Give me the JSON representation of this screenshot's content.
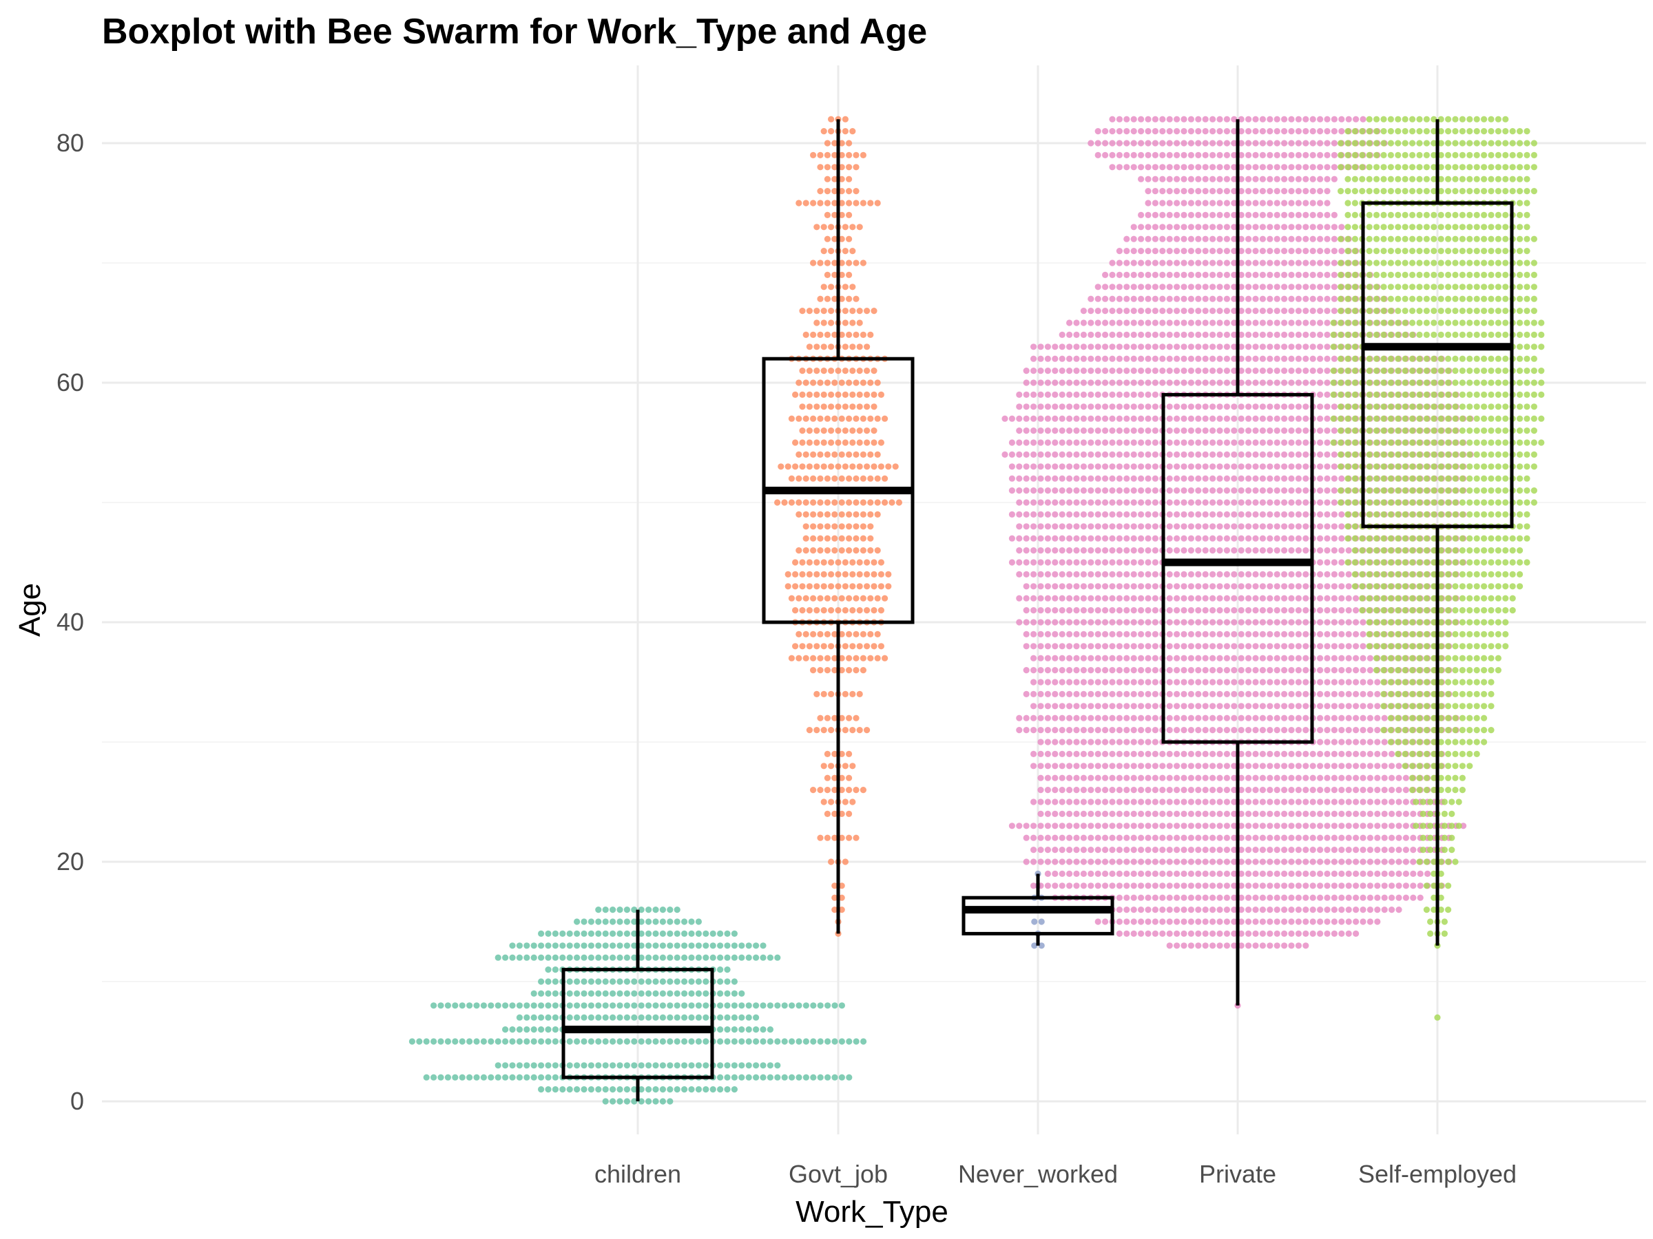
{
  "chart_data": {
    "type": "boxplot",
    "title": "Boxplot with Bee Swarm for Work_Type and Age",
    "xlabel": "Work_Type",
    "ylabel": "Age",
    "ylim": [
      -4,
      86
    ],
    "yticks": [
      0,
      20,
      40,
      60,
      80
    ],
    "grid": true,
    "legend": "none",
    "categories": [
      "children",
      "Govt_job",
      "Never_worked",
      "Private",
      "Self-employed"
    ],
    "colors": {
      "children": "#66c2a5",
      "Govt_job": "#fc8d62",
      "Never_worked": "#8da0cb",
      "Private": "#e78ac3",
      "Self-employed": "#a6d854"
    },
    "boxes": [
      {
        "category": "children",
        "min": 0,
        "q1": 2,
        "median": 6,
        "q3": 11,
        "max": 16
      },
      {
        "category": "Govt_job",
        "min": 14,
        "q1": 40,
        "median": 51,
        "q3": 62,
        "max": 82
      },
      {
        "category": "Never_worked",
        "min": 13,
        "q1": 14,
        "median": 16,
        "q3": 17,
        "max": 19
      },
      {
        "category": "Private",
        "min": 8,
        "q1": 30,
        "median": 45,
        "q3": 59,
        "max": 82
      },
      {
        "category": "Self-employed",
        "min": 13,
        "q1": 48,
        "median": 63,
        "q3": 75,
        "max": 82,
        "outliers": [
          7
        ]
      }
    ],
    "swarm": [
      {
        "category": "children",
        "age_counts": [
          [
            0,
            10
          ],
          [
            1,
            28
          ],
          [
            2,
            60
          ],
          [
            3,
            40
          ],
          [
            5,
            64
          ],
          [
            6,
            38
          ],
          [
            7,
            34
          ],
          [
            8,
            58
          ],
          [
            9,
            30
          ],
          [
            10,
            28
          ],
          [
            11,
            26
          ],
          [
            12,
            40
          ],
          [
            13,
            36
          ],
          [
            14,
            28
          ],
          [
            15,
            18
          ],
          [
            16,
            12
          ]
        ]
      },
      {
        "category": "Govt_job",
        "age_counts": [
          [
            14,
            1
          ],
          [
            15,
            1
          ],
          [
            16,
            2
          ],
          [
            17,
            2
          ],
          [
            18,
            2
          ],
          [
            20,
            3
          ],
          [
            22,
            6
          ],
          [
            24,
            4
          ],
          [
            25,
            5
          ],
          [
            26,
            8
          ],
          [
            27,
            4
          ],
          [
            28,
            5
          ],
          [
            29,
            4
          ],
          [
            31,
            9
          ],
          [
            32,
            6
          ],
          [
            34,
            7
          ],
          [
            36,
            8
          ],
          [
            37,
            14
          ],
          [
            38,
            13
          ],
          [
            39,
            12
          ],
          [
            40,
            13
          ],
          [
            41,
            13
          ],
          [
            42,
            14
          ],
          [
            43,
            15
          ],
          [
            44,
            15
          ],
          [
            45,
            13
          ],
          [
            46,
            12
          ],
          [
            47,
            10
          ],
          [
            48,
            10
          ],
          [
            49,
            12
          ],
          [
            50,
            18
          ],
          [
            51,
            16
          ],
          [
            52,
            14
          ],
          [
            53,
            17
          ],
          [
            54,
            12
          ],
          [
            55,
            13
          ],
          [
            56,
            11
          ],
          [
            57,
            14
          ],
          [
            58,
            11
          ],
          [
            59,
            13
          ],
          [
            60,
            12
          ],
          [
            61,
            11
          ],
          [
            62,
            14
          ],
          [
            63,
            9
          ],
          [
            64,
            10
          ],
          [
            65,
            7
          ],
          [
            66,
            11
          ],
          [
            67,
            6
          ],
          [
            68,
            5
          ],
          [
            69,
            4
          ],
          [
            70,
            8
          ],
          [
            71,
            5
          ],
          [
            72,
            4
          ],
          [
            73,
            7
          ],
          [
            74,
            4
          ],
          [
            75,
            12
          ],
          [
            76,
            6
          ],
          [
            77,
            4
          ],
          [
            78,
            6
          ],
          [
            79,
            8
          ],
          [
            80,
            4
          ],
          [
            81,
            5
          ],
          [
            82,
            3
          ]
        ]
      },
      {
        "category": "Never_worked",
        "age_counts": [
          [
            13,
            2
          ],
          [
            14,
            1
          ],
          [
            15,
            2
          ],
          [
            16,
            3
          ],
          [
            17,
            2
          ],
          [
            18,
            1
          ],
          [
            19,
            1
          ]
        ]
      },
      {
        "category": "Private",
        "age_counts": [
          [
            8,
            1
          ],
          [
            13,
            20
          ],
          [
            14,
            34
          ],
          [
            15,
            40
          ],
          [
            16,
            46
          ],
          [
            17,
            52
          ],
          [
            18,
            58
          ],
          [
            19,
            54
          ],
          [
            20,
            60
          ],
          [
            21,
            58
          ],
          [
            22,
            60
          ],
          [
            23,
            64
          ],
          [
            24,
            56
          ],
          [
            25,
            58
          ],
          [
            26,
            56
          ],
          [
            27,
            56
          ],
          [
            28,
            58
          ],
          [
            29,
            58
          ],
          [
            30,
            56
          ],
          [
            31,
            62
          ],
          [
            32,
            62
          ],
          [
            33,
            58
          ],
          [
            34,
            60
          ],
          [
            35,
            58
          ],
          [
            36,
            60
          ],
          [
            37,
            58
          ],
          [
            38,
            60
          ],
          [
            39,
            60
          ],
          [
            40,
            62
          ],
          [
            41,
            60
          ],
          [
            42,
            62
          ],
          [
            43,
            60
          ],
          [
            44,
            62
          ],
          [
            45,
            64
          ],
          [
            46,
            62
          ],
          [
            47,
            64
          ],
          [
            48,
            62
          ],
          [
            49,
            64
          ],
          [
            50,
            62
          ],
          [
            51,
            64
          ],
          [
            52,
            64
          ],
          [
            53,
            64
          ],
          [
            54,
            66
          ],
          [
            55,
            64
          ],
          [
            56,
            62
          ],
          [
            57,
            66
          ],
          [
            58,
            62
          ],
          [
            59,
            62
          ],
          [
            60,
            60
          ],
          [
            61,
            60
          ],
          [
            62,
            58
          ],
          [
            63,
            58
          ],
          [
            64,
            50
          ],
          [
            65,
            48
          ],
          [
            66,
            44
          ],
          [
            67,
            42
          ],
          [
            68,
            40
          ],
          [
            69,
            38
          ],
          [
            70,
            36
          ],
          [
            71,
            34
          ],
          [
            72,
            32
          ],
          [
            73,
            30
          ],
          [
            74,
            28
          ],
          [
            75,
            26
          ],
          [
            76,
            26
          ],
          [
            77,
            28
          ],
          [
            78,
            36
          ],
          [
            79,
            40
          ],
          [
            80,
            42
          ],
          [
            81,
            40
          ],
          [
            82,
            36
          ]
        ]
      },
      {
        "category": "Self-employed",
        "age_counts": [
          [
            7,
            1
          ],
          [
            13,
            1
          ],
          [
            14,
            3
          ],
          [
            15,
            3
          ],
          [
            16,
            4
          ],
          [
            17,
            2
          ],
          [
            18,
            4
          ],
          [
            19,
            2
          ],
          [
            20,
            6
          ],
          [
            21,
            5
          ],
          [
            22,
            5
          ],
          [
            23,
            7
          ],
          [
            24,
            5
          ],
          [
            25,
            7
          ],
          [
            26,
            8
          ],
          [
            27,
            8
          ],
          [
            28,
            10
          ],
          [
            29,
            12
          ],
          [
            30,
            14
          ],
          [
            31,
            16
          ],
          [
            32,
            14
          ],
          [
            33,
            16
          ],
          [
            34,
            16
          ],
          [
            35,
            16
          ],
          [
            36,
            18
          ],
          [
            37,
            18
          ],
          [
            38,
            20
          ],
          [
            39,
            20
          ],
          [
            40,
            20
          ],
          [
            41,
            22
          ],
          [
            42,
            22
          ],
          [
            43,
            24
          ],
          [
            44,
            24
          ],
          [
            45,
            26
          ],
          [
            46,
            24
          ],
          [
            47,
            26
          ],
          [
            48,
            26
          ],
          [
            49,
            26
          ],
          [
            50,
            28
          ],
          [
            51,
            28
          ],
          [
            52,
            26
          ],
          [
            53,
            28
          ],
          [
            54,
            28
          ],
          [
            55,
            30
          ],
          [
            56,
            28
          ],
          [
            57,
            30
          ],
          [
            58,
            28
          ],
          [
            59,
            30
          ],
          [
            60,
            30
          ],
          [
            61,
            30
          ],
          [
            62,
            28
          ],
          [
            63,
            30
          ],
          [
            64,
            30
          ],
          [
            65,
            30
          ],
          [
            66,
            28
          ],
          [
            67,
            28
          ],
          [
            68,
            28
          ],
          [
            69,
            28
          ],
          [
            70,
            28
          ],
          [
            71,
            26
          ],
          [
            72,
            28
          ],
          [
            73,
            26
          ],
          [
            74,
            26
          ],
          [
            75,
            26
          ],
          [
            76,
            28
          ],
          [
            77,
            26
          ],
          [
            78,
            28
          ],
          [
            79,
            28
          ],
          [
            80,
            28
          ],
          [
            81,
            26
          ],
          [
            82,
            20
          ]
        ]
      }
    ]
  }
}
